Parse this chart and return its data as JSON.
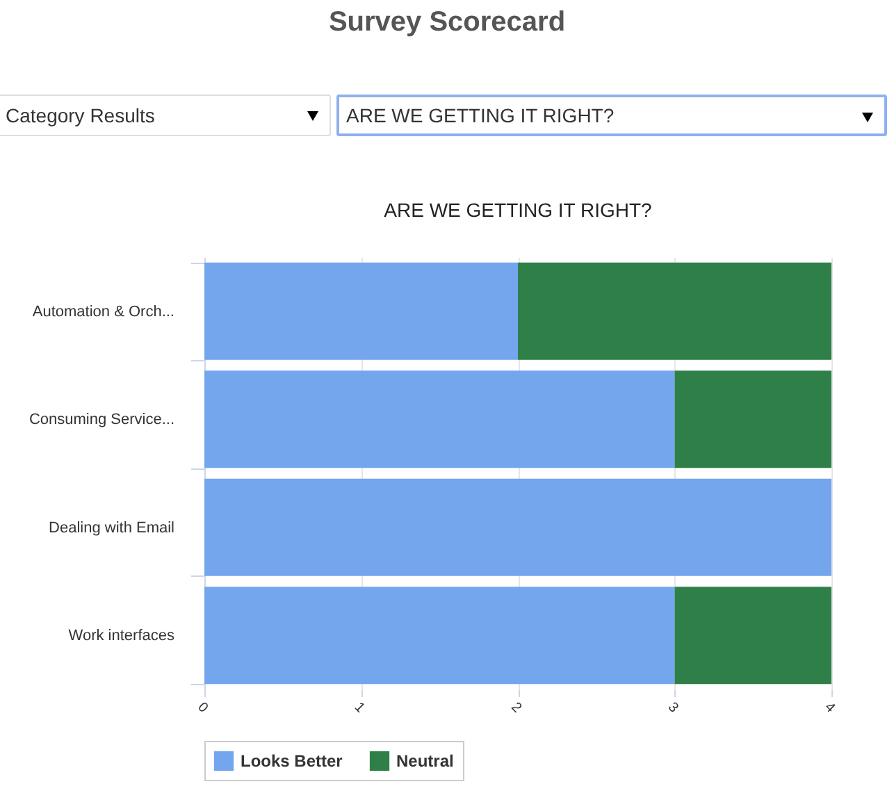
{
  "chart_data": {
    "type": "bar",
    "title": "Survey Scorecard",
    "subtitle": "ARE WE GETTING IT RIGHT?",
    "annotations": [
      "Category Results",
      "ARE WE GETTING IT RIGHT?"
    ],
    "orientation": "horizontal",
    "stacked": true,
    "categories": [
      "Automation & Orch...",
      "Consuming Service...",
      "Dealing with Email",
      "Work interfaces"
    ],
    "series": [
      {
        "name": "Looks Better",
        "color": "#74a6ee",
        "values": [
          2,
          3,
          4,
          3
        ]
      },
      {
        "name": "Neutral",
        "color": "#2f7f48",
        "values": [
          2,
          1,
          0,
          1
        ]
      }
    ],
    "xlim": [
      0,
      4
    ],
    "xticks": [
      0,
      1,
      2,
      3,
      4
    ],
    "grid": "x",
    "legend": "bottom"
  }
}
